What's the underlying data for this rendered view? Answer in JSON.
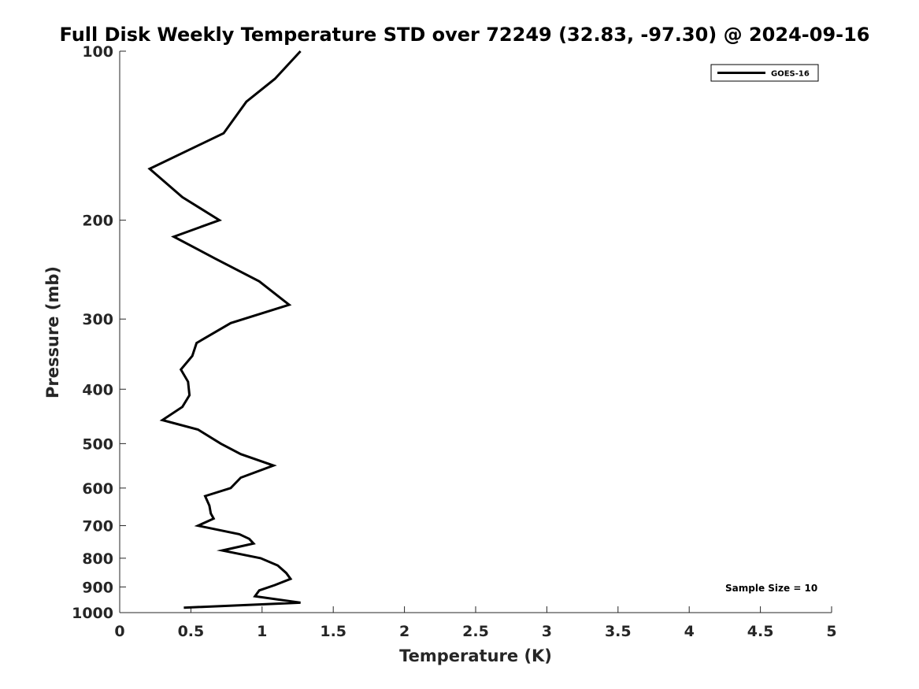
{
  "chart_data": {
    "type": "line",
    "title": "Full Disk Weekly Temperature STD over 72249 (32.83, -97.30) @ 2024-09-16",
    "xlabel": "Temperature (K)",
    "ylabel": "Pressure (mb)",
    "xlim": [
      0,
      5
    ],
    "ylim": [
      1000,
      100
    ],
    "yscale": "log",
    "y_reversed": true,
    "x_ticks": [
      "0",
      "0.5",
      "1",
      "1.5",
      "2",
      "2.5",
      "3",
      "3.5",
      "4",
      "4.5",
      "5"
    ],
    "y_ticks": [
      "100",
      "200",
      "300",
      "400",
      "500",
      "600",
      "700",
      "800",
      "900",
      "1000"
    ],
    "grid": false,
    "legend_position": "top-right",
    "annotation": "Sample Size = 10",
    "series": [
      {
        "name": "GOES-16",
        "color": "#000000",
        "x": [
          1.27,
          1.09,
          0.89,
          0.73,
          0.21,
          0.44,
          0.7,
          0.38,
          0.67,
          0.98,
          1.19,
          0.78,
          0.54,
          0.51,
          0.43,
          0.48,
          0.49,
          0.44,
          0.3,
          0.55,
          0.71,
          0.85,
          1.08,
          0.85,
          0.78,
          0.6,
          0.63,
          0.64,
          0.66,
          0.55,
          0.84,
          0.91,
          0.94,
          0.72,
          0.99,
          1.11,
          1.17,
          1.2,
          1.09,
          0.98,
          0.95,
          1.27,
          0.45
        ],
        "y": [
          100,
          112,
          123,
          140,
          162,
          182,
          200,
          214,
          234,
          257,
          283,
          305,
          331,
          349,
          369,
          388,
          410,
          430,
          454,
          472,
          500,
          522,
          547,
          575,
          600,
          620,
          645,
          666,
          680,
          700,
          725,
          739,
          753,
          775,
          800,
          824,
          850,
          871,
          893,
          913,
          935,
          960,
          980
        ]
      }
    ]
  }
}
